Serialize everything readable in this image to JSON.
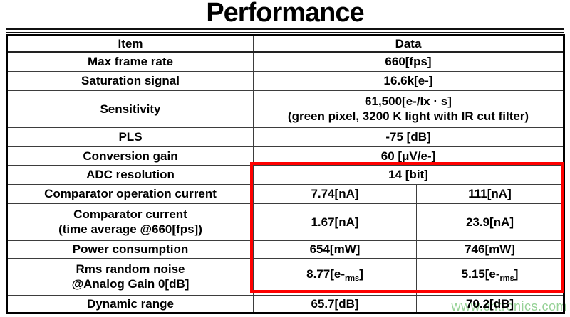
{
  "title": "Performance",
  "watermark": {
    "text": "www.cntronics.com"
  },
  "colors": {
    "highlight_box": "#ff0000",
    "watermark_text": "#8ccd8c",
    "text": "#000000",
    "background": "#ffffff"
  },
  "table": {
    "headers": {
      "item": "Item",
      "data": "Data"
    },
    "rows": [
      {
        "item": "Max frame rate",
        "data": "660[fps]"
      },
      {
        "item": "Saturation signal",
        "data": "16.6k[e-]"
      },
      {
        "item": "Sensitivity",
        "data_line1": "61,500[e-/lx · s]",
        "data_line2": "(green pixel, 3200 K light with IR cut filter)"
      },
      {
        "item": "PLS",
        "data": "-75 [dB]"
      },
      {
        "item": "Conversion gain",
        "data": "60 [μV/e-]"
      },
      {
        "item": "ADC resolution",
        "data": "14 [bit]"
      },
      {
        "item": "Comparator operation current",
        "data_a": "7.74[nA]",
        "data_b": "111[nA]"
      },
      {
        "item_line1": "Comparator current",
        "item_line2": "(time average @660[fps])",
        "data_a": "1.67[nA]",
        "data_b": "23.9[nA]"
      },
      {
        "item": "Power consumption",
        "data_a": "654[mW]",
        "data_b": "746[mW]"
      },
      {
        "item_line1": "Rms random noise",
        "item_line2": "@Analog Gain 0[dB]",
        "data_a_pre": "8.77[e-",
        "data_a_sub": "rms",
        "data_a_post": "]",
        "data_b_pre": "5.15[e-",
        "data_b_sub": "rms",
        "data_b_post": "]"
      },
      {
        "item": "Dynamic range",
        "data_a": "65.7[dB]",
        "data_b": "70.2[dB]"
      }
    ]
  }
}
